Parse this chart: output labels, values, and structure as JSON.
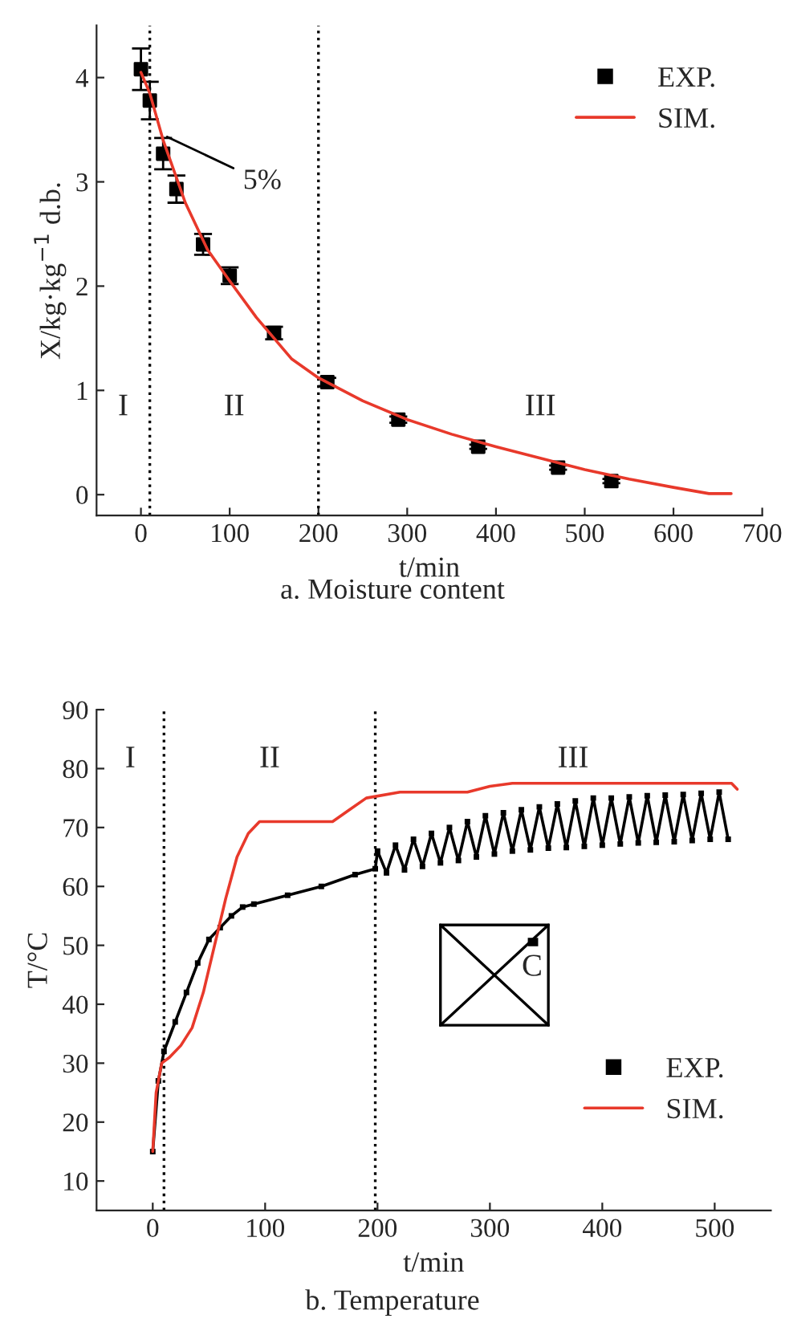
{
  "chart_data": [
    {
      "type": "scatter",
      "title": "a. Moisture content",
      "xlabel": "t/min",
      "ylabel": "X/kg·kg$^{−1}$ d.b.",
      "xlim": [
        -50,
        700
      ],
      "xticks": [
        0,
        100,
        200,
        300,
        400,
        500,
        600,
        700
      ],
      "ylim": [
        -0.2,
        4.5
      ],
      "yticks": [
        0,
        1,
        2,
        3,
        4
      ],
      "grid": false,
      "legend": "top right",
      "series": [
        {
          "name": "EXP.",
          "type": "scatter",
          "color": "#000000",
          "marker": "square",
          "x": [
            0,
            10,
            25,
            40,
            70,
            100,
            150,
            210,
            290,
            380,
            470,
            530
          ],
          "values": [
            4.08,
            3.78,
            3.27,
            2.93,
            2.4,
            2.1,
            1.55,
            1.08,
            0.72,
            0.46,
            0.26,
            0.13
          ],
          "errors": [
            0.2,
            0.18,
            0.15,
            0.13,
            0.1,
            0.08,
            0.06,
            0.04,
            0.03,
            0.02,
            0.02,
            0.02
          ]
        },
        {
          "name": "SIM.",
          "type": "line",
          "color": "#e8392b",
          "x": [
            0,
            10,
            25,
            50,
            75,
            100,
            130,
            150,
            170,
            200,
            250,
            300,
            350,
            400,
            450,
            500,
            550,
            600,
            640,
            665
          ],
          "values": [
            4.05,
            3.85,
            3.4,
            2.8,
            2.35,
            2.05,
            1.7,
            1.5,
            1.3,
            1.12,
            0.9,
            0.72,
            0.58,
            0.46,
            0.35,
            0.24,
            0.15,
            0.07,
            0.01,
            0.01
          ]
        }
      ],
      "ref_lines": [
        {
          "axis": "x",
          "value": 10,
          "line_style": "dotted",
          "color": "#000000"
        },
        {
          "axis": "x",
          "value": 200,
          "line_style": "dotted",
          "color": "#000000"
        }
      ],
      "annotations": [
        {
          "text": "5%",
          "x": 25,
          "y": 3.45
        },
        "I",
        "II",
        "III"
      ]
    },
    {
      "type": "line",
      "title": "b. Temperature",
      "xlabel": "t/min",
      "ylabel": "T/°C",
      "xlim": [
        -50,
        550
      ],
      "xticks": [
        0,
        100,
        200,
        300,
        400,
        500
      ],
      "ylim": [
        5,
        90
      ],
      "yticks": [
        10,
        20,
        30,
        40,
        50,
        60,
        70,
        80,
        90
      ],
      "grid": false,
      "legend": "bottom right",
      "series": [
        {
          "name": "EXP.",
          "color": "#000000",
          "marker": "square",
          "x": [
            0,
            5,
            10,
            20,
            30,
            40,
            50,
            60,
            70,
            80,
            90,
            120,
            150,
            180,
            198,
            200,
            208,
            216,
            224,
            232,
            240,
            248,
            256,
            264,
            272,
            280,
            288,
            296,
            304,
            312,
            320,
            328,
            336,
            344,
            352,
            360,
            368,
            376,
            384,
            392,
            400,
            408,
            416,
            424,
            432,
            440,
            448,
            456,
            464,
            472,
            480,
            488,
            496,
            504,
            512
          ],
          "values": [
            15,
            27,
            32,
            37,
            42,
            47,
            51,
            53,
            55,
            56.5,
            57,
            58.5,
            60,
            62,
            63,
            66,
            62.3,
            67,
            62.8,
            68,
            63.4,
            69,
            64,
            70,
            64.4,
            71,
            65,
            72,
            65.5,
            72.5,
            66,
            73,
            66.2,
            73.5,
            66.5,
            74,
            66.6,
            74.5,
            66.8,
            75,
            67,
            75,
            67.2,
            75.2,
            67.4,
            75.4,
            67.5,
            75.5,
            67.6,
            75.6,
            67.8,
            75.8,
            68,
            76,
            68
          ]
        },
        {
          "name": "SIM.",
          "color": "#e8392b",
          "marker": "none",
          "x": [
            0,
            3,
            8,
            15,
            25,
            35,
            45,
            55,
            65,
            75,
            85,
            95,
            120,
            160,
            175,
            190,
            220,
            280,
            300,
            320,
            400,
            515,
            520
          ],
          "values": [
            15,
            25,
            30,
            31,
            33,
            36,
            42,
            50,
            58,
            65,
            69,
            71,
            71,
            71,
            73,
            75,
            76,
            76,
            77,
            77.5,
            77.5,
            77.5,
            76.5
          ]
        }
      ],
      "ref_lines": [
        {
          "axis": "x",
          "value": 10,
          "line_style": "dotted",
          "color": "#000000"
        },
        {
          "axis": "x",
          "value": 198,
          "line_style": "dotted",
          "color": "#000000"
        }
      ],
      "annotations": [
        "I",
        "II",
        "III",
        "C"
      ]
    }
  ]
}
